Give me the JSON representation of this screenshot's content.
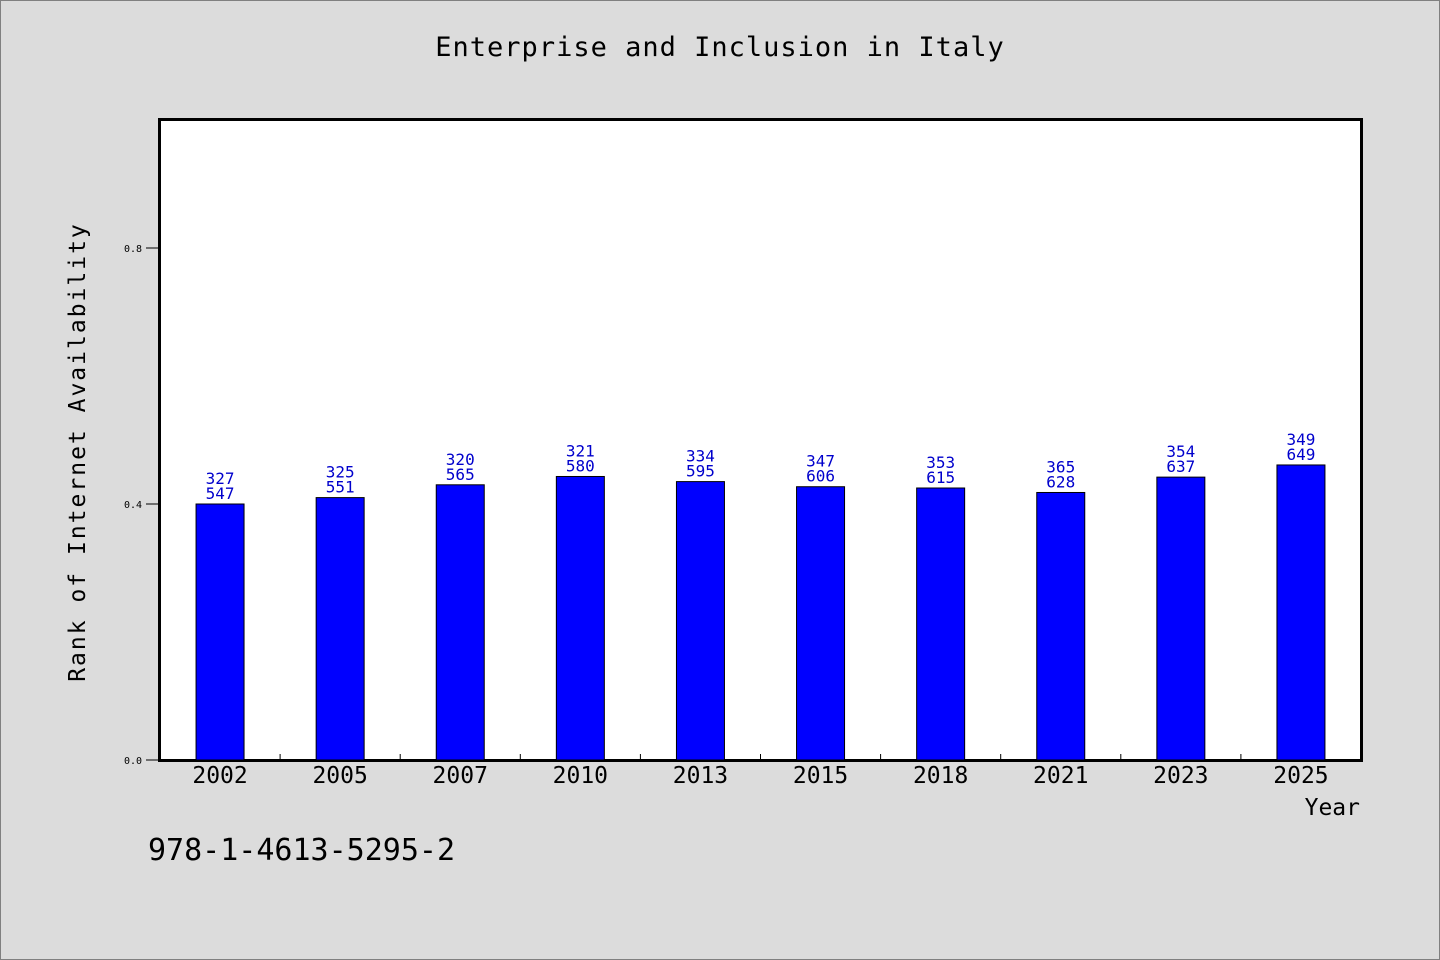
{
  "chart_data": {
    "type": "bar",
    "title": "Enterprise and Inclusion in Italy",
    "xlabel": "Year",
    "ylabel": "Rank of Internet Availability",
    "categories": [
      "2002",
      "2005",
      "2007",
      "2010",
      "2013",
      "2015",
      "2018",
      "2021",
      "2023",
      "2025"
    ],
    "values": [
      0.4,
      0.41,
      0.43,
      0.443,
      0.435,
      0.427,
      0.425,
      0.418,
      0.442,
      0.461
    ],
    "data_labels_top": [
      "327",
      "325",
      "320",
      "321",
      "334",
      "347",
      "353",
      "365",
      "354",
      "349"
    ],
    "data_labels_bottom": [
      "547",
      "551",
      "565",
      "580",
      "595",
      "606",
      "615",
      "628",
      "637",
      "649"
    ],
    "y_ticks": [
      "0.0",
      "0.4",
      "0.8"
    ],
    "ylim": [
      0,
      1.0
    ],
    "grid": false,
    "colors": {
      "bar": "#0000ff",
      "label": "#0000cc"
    }
  },
  "annotation": {
    "isbn": "978-1-4613-5295-2"
  }
}
